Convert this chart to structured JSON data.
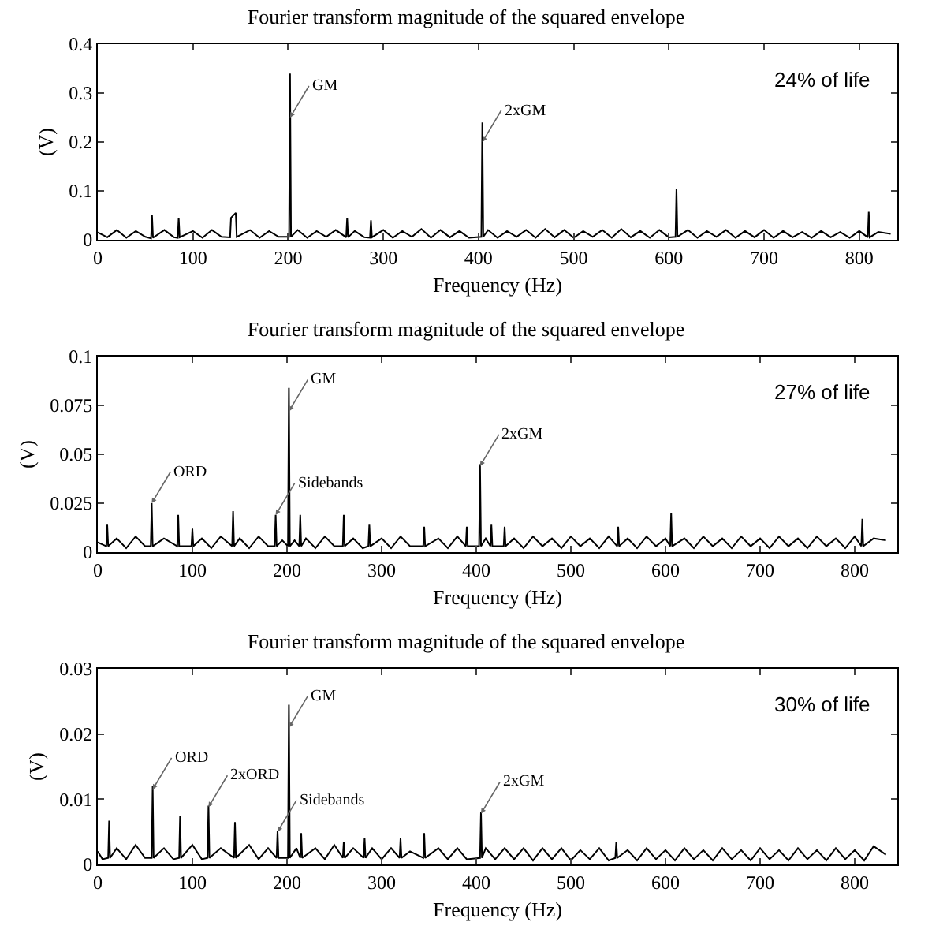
{
  "chart_data": [
    {
      "type": "line",
      "title": "Fourier transform magnitude of the squared envelope",
      "xlabel": "Frequency (Hz)",
      "ylabel": "(V)",
      "annotations": [
        {
          "text": "GM",
          "x": 202,
          "y": 0.25
        },
        {
          "text": "2xGM",
          "x": 404,
          "y": 0.2
        },
        "24% of life"
      ],
      "xlim": [
        0,
        840
      ],
      "xticks": [
        0,
        100,
        200,
        300,
        400,
        500,
        600,
        700,
        800
      ],
      "ylim": [
        0,
        0.4
      ],
      "yticks": [
        0,
        0.1,
        0.2,
        0.3,
        0.4
      ],
      "series": [
        {
          "color": "#000000",
          "x": [
            0,
            10,
            20,
            30,
            40,
            50,
            56,
            57,
            58,
            70,
            80,
            84,
            85,
            86,
            100,
            110,
            120,
            130,
            139,
            140,
            145,
            146,
            160,
            170,
            180,
            190,
            201,
            202,
            203,
            210,
            220,
            230,
            240,
            250,
            261,
            262,
            263,
            270,
            280,
            286,
            287,
            288,
            300,
            310,
            320,
            330,
            340,
            350,
            360,
            370,
            380,
            390,
            403,
            404,
            405,
            410,
            420,
            430,
            440,
            450,
            460,
            470,
            480,
            490,
            500,
            510,
            520,
            530,
            540,
            550,
            560,
            570,
            580,
            590,
            600,
            607,
            608,
            609,
            620,
            630,
            640,
            650,
            660,
            670,
            680,
            690,
            700,
            710,
            720,
            730,
            740,
            750,
            760,
            770,
            780,
            790,
            800,
            809,
            810,
            811,
            820,
            833
          ],
          "values": [
            0.015,
            0.005,
            0.02,
            0.004,
            0.018,
            0.006,
            0.003,
            0.05,
            0.004,
            0.02,
            0.005,
            0.004,
            0.045,
            0.005,
            0.018,
            0.004,
            0.02,
            0.006,
            0.005,
            0.045,
            0.055,
            0.006,
            0.02,
            0.004,
            0.018,
            0.006,
            0.006,
            0.34,
            0.006,
            0.02,
            0.004,
            0.018,
            0.006,
            0.02,
            0.005,
            0.045,
            0.005,
            0.018,
            0.005,
            0.004,
            0.04,
            0.005,
            0.02,
            0.004,
            0.018,
            0.006,
            0.022,
            0.004,
            0.02,
            0.005,
            0.018,
            0.004,
            0.006,
            0.24,
            0.006,
            0.02,
            0.004,
            0.018,
            0.006,
            0.02,
            0.004,
            0.022,
            0.005,
            0.02,
            0.004,
            0.018,
            0.006,
            0.02,
            0.004,
            0.022,
            0.005,
            0.018,
            0.004,
            0.02,
            0.005,
            0.006,
            0.105,
            0.006,
            0.02,
            0.004,
            0.018,
            0.006,
            0.02,
            0.004,
            0.018,
            0.005,
            0.02,
            0.004,
            0.018,
            0.005,
            0.016,
            0.004,
            0.018,
            0.005,
            0.016,
            0.004,
            0.018,
            0.005,
            0.057,
            0.005,
            0.016,
            0.012
          ]
        }
      ]
    },
    {
      "type": "line",
      "title": "Fourier transform magnitude of the squared envelope",
      "xlabel": "Frequency (Hz)",
      "ylabel": "(V)",
      "annotations": [
        {
          "text": "ORD",
          "x": 57,
          "y": 0.025
        },
        {
          "text": "GM",
          "x": 202,
          "y": 0.072
        },
        {
          "text": "Sidebands",
          "x": 188,
          "y": 0.019
        },
        {
          "text": "2xGM",
          "x": 404,
          "y": 0.044
        },
        "27% of life"
      ],
      "xlim": [
        0,
        845
      ],
      "xticks": [
        0,
        100,
        200,
        300,
        400,
        500,
        600,
        700,
        800
      ],
      "ylim": [
        0,
        0.1
      ],
      "yticks": [
        0,
        0.025,
        0.05,
        0.075,
        0.1
      ],
      "series": [
        {
          "color": "#000000",
          "x": [
            0,
            9,
            10,
            11,
            20,
            30,
            40,
            50,
            56,
            57,
            58,
            70,
            84,
            85,
            86,
            99,
            100,
            101,
            110,
            120,
            130,
            142,
            143,
            144,
            150,
            160,
            170,
            180,
            187,
            188,
            189,
            195,
            201,
            202,
            203,
            208,
            213,
            214,
            215,
            220,
            230,
            240,
            250,
            259,
            260,
            261,
            270,
            280,
            286,
            287,
            288,
            300,
            310,
            320,
            330,
            344,
            345,
            346,
            360,
            370,
            380,
            389,
            390,
            391,
            403,
            404,
            405,
            410,
            415,
            416,
            417,
            429,
            430,
            431,
            440,
            450,
            460,
            470,
            480,
            490,
            500,
            510,
            520,
            530,
            540,
            549,
            550,
            551,
            560,
            570,
            580,
            590,
            600,
            605,
            606,
            607,
            620,
            630,
            640,
            650,
            660,
            670,
            680,
            690,
            700,
            710,
            720,
            730,
            740,
            750,
            760,
            770,
            780,
            790,
            800,
            807,
            808,
            809,
            820,
            833
          ],
          "values": [
            0.005,
            0.003,
            0.014,
            0.003,
            0.007,
            0.002,
            0.008,
            0.003,
            0.003,
            0.025,
            0.003,
            0.007,
            0.003,
            0.019,
            0.003,
            0.003,
            0.012,
            0.003,
            0.007,
            0.002,
            0.008,
            0.003,
            0.021,
            0.003,
            0.007,
            0.002,
            0.008,
            0.003,
            0.003,
            0.019,
            0.003,
            0.006,
            0.003,
            0.084,
            0.003,
            0.006,
            0.003,
            0.019,
            0.003,
            0.007,
            0.002,
            0.008,
            0.003,
            0.003,
            0.019,
            0.003,
            0.007,
            0.002,
            0.003,
            0.014,
            0.003,
            0.007,
            0.002,
            0.008,
            0.003,
            0.003,
            0.013,
            0.003,
            0.007,
            0.002,
            0.008,
            0.003,
            0.013,
            0.003,
            0.003,
            0.045,
            0.003,
            0.007,
            0.003,
            0.014,
            0.003,
            0.003,
            0.013,
            0.003,
            0.007,
            0.002,
            0.008,
            0.003,
            0.007,
            0.002,
            0.008,
            0.003,
            0.007,
            0.002,
            0.008,
            0.003,
            0.013,
            0.003,
            0.007,
            0.002,
            0.008,
            0.003,
            0.007,
            0.003,
            0.02,
            0.003,
            0.007,
            0.002,
            0.008,
            0.003,
            0.007,
            0.002,
            0.008,
            0.003,
            0.007,
            0.002,
            0.008,
            0.003,
            0.007,
            0.002,
            0.008,
            0.003,
            0.007,
            0.002,
            0.008,
            0.003,
            0.017,
            0.003,
            0.007,
            0.006
          ]
        }
      ]
    },
    {
      "type": "line",
      "title": "Fourier transform magnitude of the squared envelope",
      "xlabel": "Frequency (Hz)",
      "ylabel": "(V)",
      "annotations": [
        {
          "text": "ORD",
          "x": 58,
          "y": 0.0115
        },
        {
          "text": "2xORD",
          "x": 117,
          "y": 0.0088
        },
        {
          "text": "GM",
          "x": 202,
          "y": 0.021
        },
        {
          "text": "Sidebands",
          "x": 190,
          "y": 0.005
        },
        {
          "text": "2xGM",
          "x": 405,
          "y": 0.0078
        },
        "30% of life"
      ],
      "xlim": [
        0,
        845
      ],
      "xticks": [
        0,
        100,
        200,
        300,
        400,
        500,
        600,
        700,
        800
      ],
      "ylim": [
        0,
        0.03
      ],
      "yticks": [
        0,
        0.01,
        0.02,
        0.03
      ],
      "series": [
        {
          "color": "#000000",
          "x": [
            0,
            5,
            11,
            12,
            13,
            20,
            30,
            40,
            50,
            57,
            58,
            59,
            70,
            80,
            86,
            87,
            88,
            100,
            110,
            116,
            117,
            118,
            130,
            144,
            145,
            146,
            160,
            170,
            180,
            189,
            190,
            191,
            201,
            202,
            203,
            210,
            214,
            215,
            216,
            230,
            240,
            250,
            259,
            260,
            261,
            270,
            281,
            282,
            283,
            290,
            300,
            310,
            319,
            320,
            321,
            330,
            344,
            345,
            346,
            360,
            370,
            380,
            390,
            404,
            405,
            406,
            410,
            420,
            430,
            440,
            450,
            460,
            470,
            480,
            490,
            500,
            510,
            520,
            530,
            540,
            547,
            548,
            549,
            560,
            570,
            580,
            590,
            600,
            610,
            620,
            630,
            640,
            650,
            660,
            670,
            680,
            690,
            700,
            710,
            720,
            730,
            740,
            750,
            760,
            770,
            780,
            790,
            800,
            810,
            820,
            833
          ],
          "values": [
            0.002,
            0.0008,
            0.001,
            0.0067,
            0.001,
            0.0025,
            0.0008,
            0.003,
            0.001,
            0.001,
            0.012,
            0.001,
            0.0025,
            0.0008,
            0.001,
            0.0075,
            0.001,
            0.003,
            0.0008,
            0.001,
            0.009,
            0.001,
            0.0025,
            0.001,
            0.0065,
            0.001,
            0.003,
            0.0008,
            0.0025,
            0.001,
            0.0052,
            0.001,
            0.001,
            0.0245,
            0.001,
            0.0025,
            0.001,
            0.0048,
            0.001,
            0.0025,
            0.0008,
            0.003,
            0.001,
            0.0035,
            0.001,
            0.0025,
            0.001,
            0.004,
            0.001,
            0.0025,
            0.0008,
            0.0025,
            0.001,
            0.004,
            0.001,
            0.002,
            0.001,
            0.0048,
            0.001,
            0.0025,
            0.0008,
            0.0025,
            0.0008,
            0.001,
            0.008,
            0.001,
            0.0025,
            0.0008,
            0.0025,
            0.0008,
            0.0025,
            0.0006,
            0.0025,
            0.0008,
            0.0025,
            0.0006,
            0.0022,
            0.0008,
            0.0025,
            0.0006,
            0.001,
            0.0035,
            0.001,
            0.0022,
            0.0006,
            0.0025,
            0.0008,
            0.0022,
            0.0006,
            0.0025,
            0.0008,
            0.0022,
            0.0006,
            0.0025,
            0.0008,
            0.0022,
            0.0006,
            0.0025,
            0.0008,
            0.0022,
            0.0006,
            0.0025,
            0.0008,
            0.0022,
            0.0006,
            0.0025,
            0.0008,
            0.0022,
            0.0006,
            0.0028,
            0.0015
          ]
        }
      ]
    }
  ]
}
